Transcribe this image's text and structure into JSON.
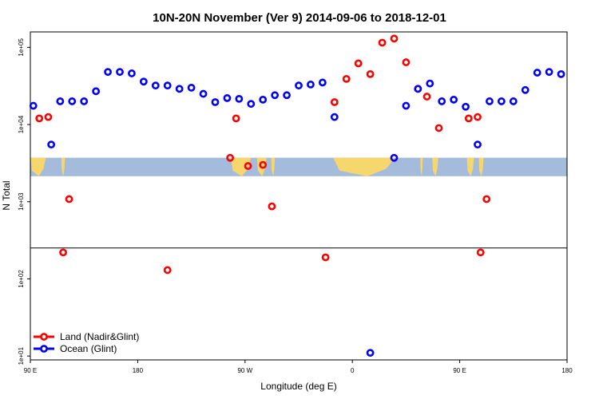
{
  "chart_data": {
    "type": "scatter",
    "title": "10N-20N November (Ver 9)   2014-09-06 to 2018-12-01",
    "xlabel": "Longitude (deg E)",
    "ylabel": "N Total",
    "xlim": [
      90,
      540
    ],
    "y_scale": "log",
    "ylim_log10": [
      0.95,
      5.2
    ],
    "x_ticks": [
      {
        "value": 90,
        "label": "90 E"
      },
      {
        "value": 180,
        "label": "180"
      },
      {
        "value": 270,
        "label": "90 W"
      },
      {
        "value": 360,
        "label": "0"
      },
      {
        "value": 450,
        "label": "90 E"
      },
      {
        "value": 540,
        "label": "180"
      }
    ],
    "y_ticks": [
      {
        "value": 10,
        "label": "1e+01"
      },
      {
        "value": 100,
        "label": "1e+02"
      },
      {
        "value": 1000,
        "label": "1e+03"
      },
      {
        "value": 10000,
        "label": "1e+04"
      },
      {
        "value": 100000,
        "label": "1e+05"
      }
    ],
    "legend_position": "bottom-left",
    "map_band": {
      "lon_range": [
        90,
        540
      ],
      "lat_range": [
        10,
        20
      ],
      "log10_range": [
        3.33,
        3.57
      ]
    },
    "reference_line_log10": 2.4,
    "series": [
      {
        "name": "Land (Nadir&Glint)",
        "color": "#ff0000",
        "points": [
          [
            97.5,
            12000
          ],
          [
            105,
            12500
          ],
          [
            117.5,
            220
          ],
          [
            122.5,
            1080
          ],
          [
            205,
            130
          ],
          [
            257.5,
            3700
          ],
          [
            262.5,
            12000
          ],
          [
            272.5,
            2900
          ],
          [
            285,
            3000
          ],
          [
            292.5,
            870
          ],
          [
            337.5,
            190
          ],
          [
            345,
            19500
          ],
          [
            355,
            39000
          ],
          [
            365,
            62000
          ],
          [
            375,
            45000
          ],
          [
            385,
            115000
          ],
          [
            395,
            130000
          ],
          [
            405,
            64000
          ],
          [
            415,
            29000
          ],
          [
            422.5,
            23000
          ],
          [
            432.5,
            9000
          ],
          [
            457.5,
            12000
          ],
          [
            465,
            12500
          ],
          [
            467.5,
            220
          ],
          [
            472.5,
            1080
          ]
        ]
      },
      {
        "name": "Ocean (Glint)",
        "color": "#0000ff",
        "points": [
          [
            92.5,
            17500
          ],
          [
            107.5,
            5500
          ],
          [
            115,
            20000
          ],
          [
            125,
            20000
          ],
          [
            135,
            20000
          ],
          [
            145,
            27000
          ],
          [
            155,
            48000
          ],
          [
            165,
            48000
          ],
          [
            175,
            46000
          ],
          [
            185,
            36000
          ],
          [
            195,
            32000
          ],
          [
            205,
            32000
          ],
          [
            215,
            29000
          ],
          [
            225,
            30000
          ],
          [
            235,
            25000
          ],
          [
            245,
            19500
          ],
          [
            255,
            22000
          ],
          [
            265,
            21500
          ],
          [
            275,
            18500
          ],
          [
            285,
            21000
          ],
          [
            295,
            24000
          ],
          [
            305,
            24000
          ],
          [
            315,
            32000
          ],
          [
            325,
            33000
          ],
          [
            335,
            35000
          ],
          [
            345,
            12500
          ],
          [
            375,
            11
          ],
          [
            395,
            3700
          ],
          [
            405,
            17500
          ],
          [
            415,
            29000
          ],
          [
            425,
            34000
          ],
          [
            435,
            20000
          ],
          [
            445,
            21000
          ],
          [
            455,
            17000
          ],
          [
            465,
            5500
          ],
          [
            475,
            20000
          ],
          [
            485,
            20000
          ],
          [
            495,
            20000
          ],
          [
            505,
            28000
          ],
          [
            515,
            47000
          ],
          [
            525,
            48000
          ],
          [
            535,
            45000
          ]
        ]
      }
    ]
  }
}
